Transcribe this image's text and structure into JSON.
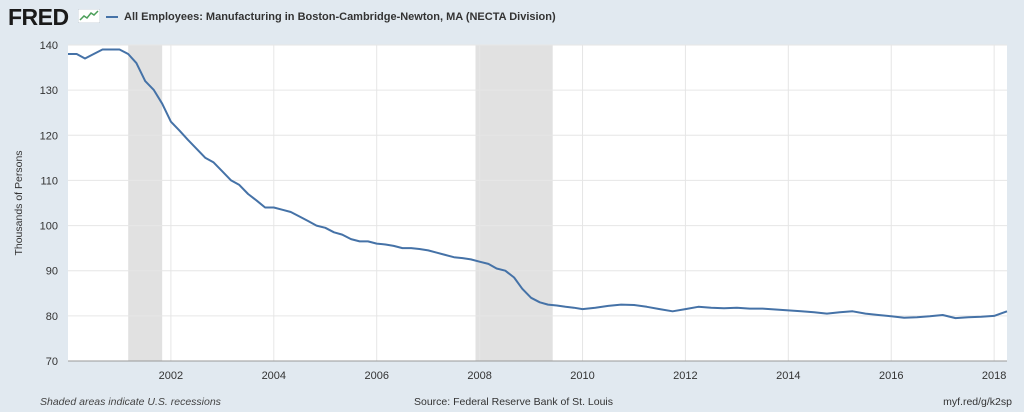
{
  "brand": {
    "logo_text": "FRED"
  },
  "colors": {
    "series": "#4572a7",
    "recession": "#e1e1e1",
    "plot_bg": "#ffffff",
    "page_bg": "#e1e9f0",
    "grid": "#e6e6e6"
  },
  "legend": {
    "label": "All Employees: Manufacturing in Boston-Cambridge-Newton, MA (NECTA Division)"
  },
  "footer": {
    "left": "Shaded areas indicate U.S. recessions",
    "center": "Source: Federal Reserve Bank of St. Louis",
    "right": "myf.red/g/k2sp"
  },
  "chart_data": {
    "type": "line",
    "title": "All Employees: Manufacturing in Boston-Cambridge-Newton, MA (NECTA Division)",
    "ylabel": "Thousands of Persons",
    "xlabel": "",
    "xlim": [
      2000.0,
      2018.25
    ],
    "ylim": [
      70,
      140
    ],
    "yticks": [
      70,
      80,
      90,
      100,
      110,
      120,
      130,
      140
    ],
    "xticks": [
      2002,
      2004,
      2006,
      2008,
      2010,
      2012,
      2014,
      2016,
      2018
    ],
    "grid": true,
    "legend_position": "top-left",
    "recessions": [
      [
        2001.17,
        2001.83
      ],
      [
        2007.92,
        2009.42
      ]
    ],
    "series": [
      {
        "name": "All Employees: Manufacturing in Boston-Cambridge-Newton, MA (NECTA Division)",
        "x": [
          2000.0,
          2000.17,
          2000.33,
          2000.5,
          2000.67,
          2000.83,
          2001.0,
          2001.17,
          2001.33,
          2001.5,
          2001.67,
          2001.83,
          2002.0,
          2002.17,
          2002.33,
          2002.5,
          2002.67,
          2002.83,
          2003.0,
          2003.17,
          2003.33,
          2003.5,
          2003.67,
          2003.83,
          2004.0,
          2004.17,
          2004.33,
          2004.5,
          2004.67,
          2004.83,
          2005.0,
          2005.17,
          2005.33,
          2005.5,
          2005.67,
          2005.83,
          2006.0,
          2006.17,
          2006.33,
          2006.5,
          2006.67,
          2006.83,
          2007.0,
          2007.17,
          2007.33,
          2007.5,
          2007.67,
          2007.83,
          2008.0,
          2008.17,
          2008.33,
          2008.5,
          2008.67,
          2008.83,
          2009.0,
          2009.17,
          2009.33,
          2009.5,
          2009.67,
          2009.83,
          2010.0,
          2010.25,
          2010.5,
          2010.75,
          2011.0,
          2011.25,
          2011.5,
          2011.75,
          2012.0,
          2012.25,
          2012.5,
          2012.75,
          2013.0,
          2013.25,
          2013.5,
          2013.75,
          2014.0,
          2014.25,
          2014.5,
          2014.75,
          2015.0,
          2015.25,
          2015.5,
          2015.75,
          2016.0,
          2016.25,
          2016.5,
          2016.75,
          2017.0,
          2017.25,
          2017.5,
          2017.75,
          2018.0,
          2018.25
        ],
        "values": [
          138,
          138,
          137,
          138,
          139,
          139,
          139,
          138,
          136,
          132,
          130,
          127,
          123,
          121,
          119,
          117,
          115,
          114,
          112,
          110,
          109,
          107,
          105.5,
          104,
          104,
          103.5,
          103,
          102,
          101,
          100,
          99.5,
          98.5,
          98,
          97,
          96.5,
          96.5,
          96,
          95.8,
          95.5,
          95,
          95,
          94.8,
          94.5,
          94,
          93.5,
          93,
          92.8,
          92.5,
          92,
          91.5,
          90.5,
          90,
          88.5,
          86,
          84,
          83,
          82.5,
          82.3,
          82,
          81.8,
          81.5,
          81.8,
          82.2,
          82.5,
          82.4,
          82,
          81.5,
          81,
          81.5,
          82,
          81.8,
          81.7,
          81.8,
          81.6,
          81.6,
          81.4,
          81.2,
          81,
          80.8,
          80.5,
          80.8,
          81,
          80.5,
          80.2,
          79.9,
          79.6,
          79.7,
          79.9,
          80.2,
          79.5,
          79.7,
          79.8,
          80,
          81
        ]
      }
    ]
  }
}
